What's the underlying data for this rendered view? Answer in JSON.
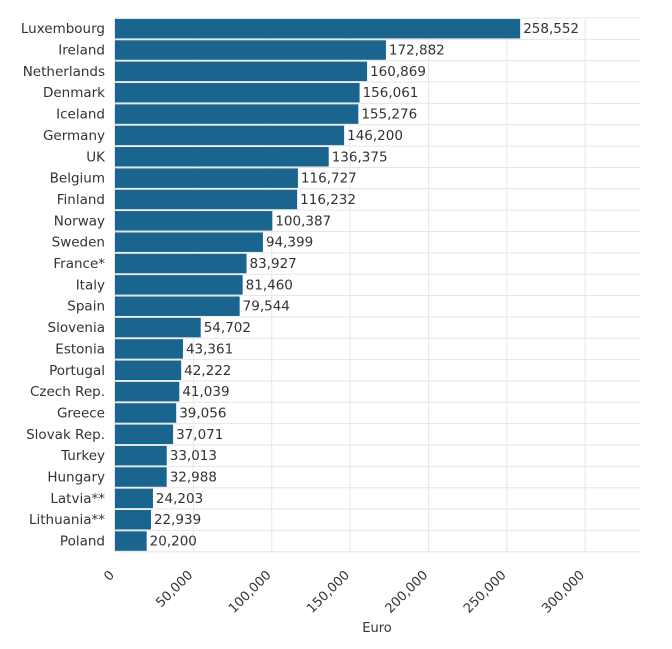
{
  "chart_data": {
    "type": "bar",
    "orientation": "horizontal",
    "title": "",
    "xlabel": "Euro",
    "ylabel": "",
    "xlim": [
      0,
      335000
    ],
    "x_ticks": [
      {
        "value": 0,
        "label": "0"
      },
      {
        "value": 50000,
        "label": "50,000"
      },
      {
        "value": 100000,
        "label": "100,000"
      },
      {
        "value": 150000,
        "label": "150,000"
      },
      {
        "value": 200000,
        "label": "200,000"
      },
      {
        "value": 250000,
        "label": "250,000"
      },
      {
        "value": 300000,
        "label": "300,000"
      }
    ],
    "grid": true,
    "bar_color": "#1a6490",
    "categories": [
      "Luxembourg",
      "Ireland",
      "Netherlands",
      "Denmark",
      "Iceland",
      "Germany",
      "UK",
      "Belgium",
      "Finland",
      "Norway",
      "Sweden",
      "France*",
      "Italy",
      "Spain",
      "Slovenia",
      "Estonia",
      "Portugal",
      "Czech Rep.",
      "Greece",
      "Slovak Rep.",
      "Turkey",
      "Hungary",
      "Latvia**",
      "Lithuania**",
      "Poland"
    ],
    "values": [
      258552,
      172882,
      160869,
      156061,
      155276,
      146200,
      136375,
      116727,
      116232,
      100387,
      94399,
      83927,
      81460,
      79544,
      54702,
      43361,
      42222,
      41039,
      39056,
      37071,
      33013,
      32988,
      24203,
      22939,
      20200
    ],
    "value_labels": [
      "258,552",
      "172,882",
      "160,869",
      "156,061",
      "155,276",
      "146,200",
      "136,375",
      "116,727",
      "116,232",
      "100,387",
      "94,399",
      "83,927",
      "81,460",
      "79,544",
      "54,702",
      "43,361",
      "42,222",
      "41,039",
      "39,056",
      "37,071",
      "33,013",
      "32,988",
      "24,203",
      "22,939",
      "20,200"
    ]
  }
}
